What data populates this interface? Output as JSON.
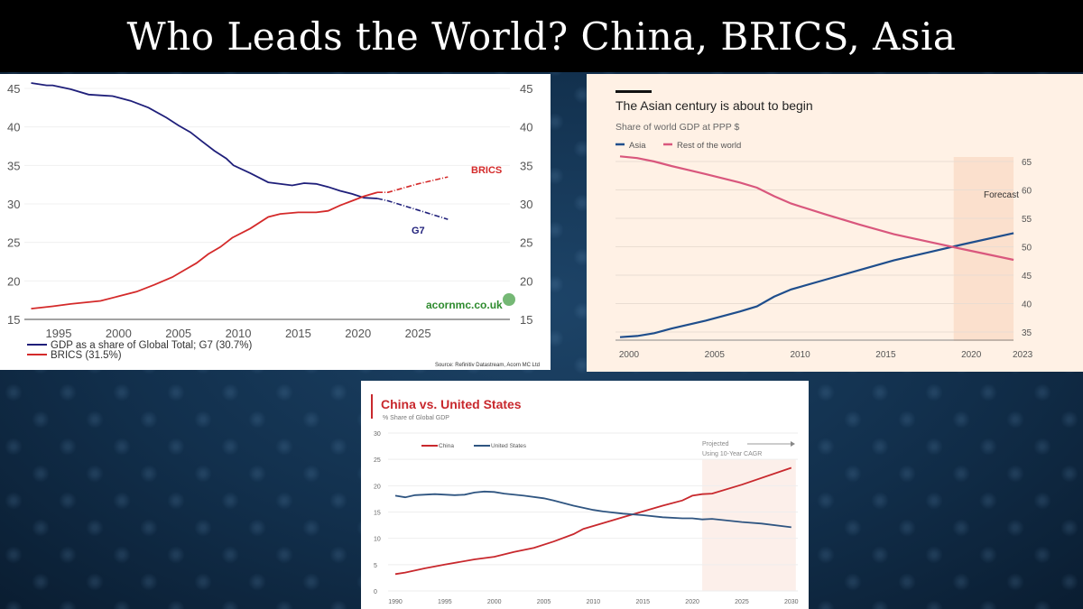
{
  "slide": {
    "title": "Who Leads the World? China, BRICS, Asia"
  },
  "chart_data": [
    {
      "type": "line",
      "title": "",
      "xlabel": "",
      "ylabel": "",
      "xlim": [
        1992.5,
        2028
      ],
      "ylim": [
        15,
        45
      ],
      "xticks": [
        1995,
        2000,
        2005,
        2010,
        2015,
        2020,
        2025
      ],
      "yticks": [
        15,
        20,
        25,
        30,
        35,
        40,
        45
      ],
      "grid": true,
      "legend_position": "bottom-left",
      "series": [
        {
          "name": "GDP as a share of Global Total; G7 (30.7%)",
          "label": "G7",
          "color": "#1f1f7a",
          "x": [
            1992.7,
            1994,
            1994.5,
            1996,
            1997.5,
            1998.5,
            1999.5,
            2001,
            2002.5,
            2004,
            2005,
            2006,
            2007,
            2008,
            2009,
            2009.6,
            2011,
            2012.5,
            2014.5,
            2015.5,
            2016.5,
            2017.5,
            2018.5,
            2019.5,
            2020.5,
            2021.6
          ],
          "y": [
            45.7,
            45.4,
            45.4,
            44.9,
            44.2,
            44.1,
            44.0,
            43.4,
            42.5,
            41.2,
            40.2,
            39.3,
            38.1,
            36.9,
            35.9,
            35.0,
            34.0,
            32.8,
            32.4,
            32.7,
            32.6,
            32.2,
            31.7,
            31.3,
            30.8,
            30.7
          ],
          "projection": {
            "x": [
              2021.6,
              2022.5,
              2025,
              2027.5
            ],
            "y": [
              30.7,
              30.4,
              29.2,
              28.0
            ]
          }
        },
        {
          "name": "BRICS (31.5%)",
          "label": "BRICS",
          "color": "#d42a2a",
          "x": [
            1992.7,
            1994.5,
            1996,
            1998.5,
            2000,
            2001.5,
            2003,
            2004.5,
            2005.5,
            2006.5,
            2007.5,
            2008.5,
            2009.5,
            2011,
            2012.5,
            2013.5,
            2015,
            2016.5,
            2017.5,
            2018.5,
            2019.5,
            2020.5,
            2021.6
          ],
          "y": [
            16.4,
            16.7,
            17.0,
            17.4,
            18.0,
            18.6,
            19.5,
            20.5,
            21.4,
            22.3,
            23.5,
            24.4,
            25.6,
            26.8,
            28.3,
            28.7,
            28.9,
            28.9,
            29.1,
            29.8,
            30.4,
            31.0,
            31.5
          ],
          "projection": {
            "x": [
              2021.6,
              2022.5,
              2025,
              2027.5
            ],
            "y": [
              31.5,
              31.5,
              32.6,
              33.5
            ]
          }
        }
      ],
      "watermark": "acornmc.co.uk",
      "source": "Source: Refinitiv Datastream, Acorn MC Ltd"
    },
    {
      "type": "line",
      "title": "The Asian century is about to begin",
      "subtitle": "Share of world GDP at PPP $",
      "xlim": [
        2000,
        2023
      ],
      "ylim": [
        35,
        65
      ],
      "xticks": [
        2000,
        2005,
        2010,
        2015,
        2020,
        2023
      ],
      "yticks": [
        35,
        40,
        45,
        50,
        55,
        60,
        65
      ],
      "grid": true,
      "legend_position": "top-left",
      "shaded_region": {
        "label": "Forecast",
        "from": 2019.5,
        "to": 2023
      },
      "series": [
        {
          "name": "Asia",
          "color": "#1f4e8c",
          "x": [
            2000,
            2001,
            2002,
            2003,
            2005,
            2007,
            2008,
            2009,
            2010,
            2012,
            2014,
            2016,
            2018,
            2020,
            2023
          ],
          "y": [
            34.1,
            34.3,
            34.8,
            35.6,
            37.0,
            38.6,
            39.5,
            41.2,
            42.5,
            44.2,
            45.9,
            47.6,
            49.0,
            50.4,
            52.4
          ]
        },
        {
          "name": "Rest of the world",
          "color": "#d9577d",
          "x": [
            2000,
            2001,
            2002,
            2003,
            2005,
            2007,
            2008,
            2009,
            2010,
            2012,
            2014,
            2016,
            2018,
            2020,
            2023
          ],
          "y": [
            65.9,
            65.6,
            65.0,
            64.2,
            62.8,
            61.3,
            60.4,
            58.9,
            57.6,
            55.7,
            53.9,
            52.2,
            50.9,
            49.6,
            47.7
          ]
        }
      ]
    },
    {
      "type": "line",
      "title": "China vs. United States",
      "subtitle": "% Share of Global GDP",
      "xlim": [
        1990,
        2030
      ],
      "ylim": [
        0,
        30
      ],
      "xticks": [
        1990,
        1995,
        2000,
        2005,
        2010,
        2015,
        2020,
        2025,
        2030
      ],
      "yticks": [
        0,
        5,
        10,
        15,
        20,
        25,
        30
      ],
      "grid": true,
      "legend_position": "top-left",
      "shaded_region": {
        "label": "Projected",
        "label2": "Using 10-Year CAGR",
        "from": 2021,
        "to": 2030
      },
      "series": [
        {
          "name": "China",
          "color": "#c8282d",
          "x": [
            1990,
            1991,
            1993,
            1995,
            1998,
            2000,
            2002,
            2004,
            2006,
            2008,
            2009,
            2011,
            2013,
            2015,
            2017,
            2019,
            2020,
            2021,
            2022,
            2025,
            2030
          ],
          "y": [
            3.2,
            3.5,
            4.3,
            5.0,
            6.0,
            6.5,
            7.4,
            8.2,
            9.4,
            10.8,
            11.8,
            12.9,
            14.0,
            15.1,
            16.2,
            17.2,
            18.1,
            18.4,
            18.5,
            20.2,
            23.4
          ]
        },
        {
          "name": "United States",
          "color": "#2f5581",
          "x": [
            1990,
            1991,
            1992,
            1994,
            1996,
            1997,
            1998,
            1999,
            2000,
            2001,
            2003,
            2005,
            2006,
            2008,
            2010,
            2011,
            2013,
            2015,
            2017,
            2019,
            2020,
            2021,
            2022,
            2025,
            2027,
            2030
          ],
          "y": [
            18.1,
            17.8,
            18.2,
            18.4,
            18.2,
            18.3,
            18.7,
            18.9,
            18.8,
            18.5,
            18.1,
            17.6,
            17.2,
            16.2,
            15.4,
            15.1,
            14.7,
            14.4,
            14.0,
            13.8,
            13.8,
            13.6,
            13.7,
            13.1,
            12.8,
            12.1
          ]
        }
      ]
    }
  ]
}
